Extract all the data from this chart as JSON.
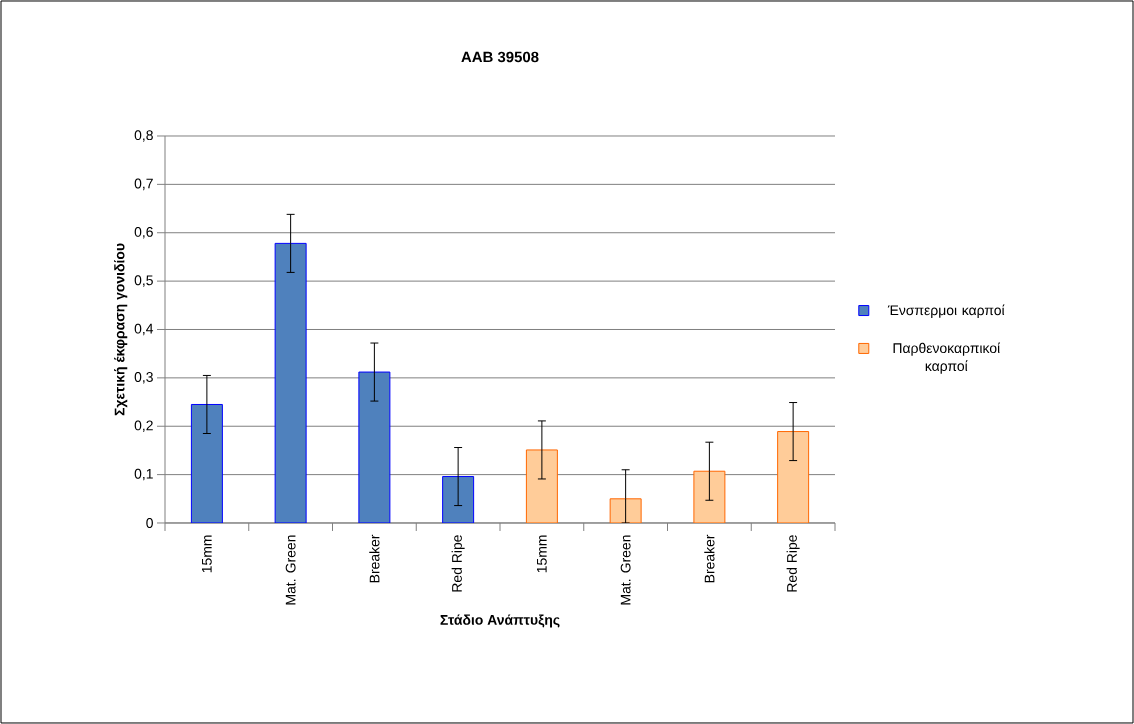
{
  "chart_data": {
    "type": "bar",
    "title": "AAB 39508",
    "xlabel": "Στάδιο Ανάπτυξης",
    "ylabel": "Σχετική έκφραση γονιδίου",
    "categories": [
      "15mm",
      "Mat. Green",
      "Breaker",
      "Red Ripe",
      "15mm",
      "Mat. Green",
      "Breaker",
      "Red Ripe"
    ],
    "series": [
      {
        "name": "Ένσπερμοι καρποί",
        "color": "#4f81bd",
        "values": [
          0.245,
          0.578,
          0.312,
          0.096,
          null,
          null,
          null,
          null
        ],
        "errors": [
          0.06,
          0.06,
          0.06,
          0.06,
          null,
          null,
          null,
          null
        ]
      },
      {
        "name": "Παρθενοκαρπικοί καρποί",
        "color": "#ffcc99",
        "values": [
          null,
          null,
          null,
          null,
          0.151,
          0.05,
          0.107,
          0.189
        ],
        "errors": [
          null,
          null,
          null,
          null,
          0.06,
          [
            0,
            0.11
          ],
          0.06,
          0.06
        ]
      }
    ],
    "ylim": [
      0,
      0.8
    ],
    "yticks": [
      {
        "value": 0,
        "label": "0"
      },
      {
        "value": 0.1,
        "label": "0,1"
      },
      {
        "value": 0.2,
        "label": "0,2"
      },
      {
        "value": 0.3,
        "label": "0,3"
      },
      {
        "value": 0.4,
        "label": "0,4"
      },
      {
        "value": 0.5,
        "label": "0,5"
      },
      {
        "value": 0.6,
        "label": "0,6"
      },
      {
        "value": 0.7,
        "label": "0,7"
      },
      {
        "value": 0.8,
        "label": "0,8"
      }
    ],
    "grid": "y",
    "legend": "right"
  }
}
